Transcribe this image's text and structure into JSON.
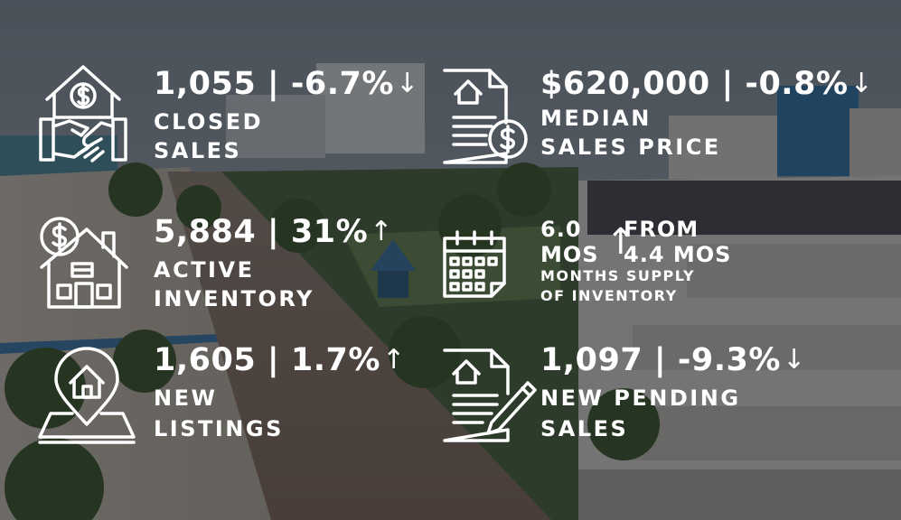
{
  "stats": {
    "closed": {
      "value": "1,055 | -6.7%",
      "arrow": "↓",
      "label_1": "CLOSED",
      "label_2": "SALES",
      "icon": "house-handshake-icon"
    },
    "median": {
      "value": "$620,000 | -0.8%",
      "arrow": "↓",
      "label_1": "MEDIAN",
      "label_2": "SALES PRICE",
      "icon": "document-dollar-icon"
    },
    "active": {
      "value": "5,884 | 31%",
      "arrow": "↑",
      "label_1": "ACTIVE",
      "label_2": "INVENTORY",
      "icon": "house-dollar-icon"
    },
    "supply": {
      "value_top": "6.0",
      "unit": "MOS",
      "arrow": "↑",
      "from_label": "FROM",
      "from_value": "4.4  MOS",
      "label_1": "MONTHS SUPPLY",
      "label_2": "OF INVENTORY",
      "icon": "calendar-icon"
    },
    "new_listings": {
      "value": "1,605 | 1.7%",
      "arrow": "↑",
      "label_1": "NEW",
      "label_2": "LISTINGS",
      "icon": "location-pin-house-icon"
    },
    "pending": {
      "value": "1,097 | -9.3%",
      "arrow": "↓",
      "label_1": "NEW PENDING",
      "label_2": "SALES",
      "icon": "document-pen-icon"
    }
  },
  "colors": {
    "text": "#ffffff",
    "overlay": "rgba(20,22,28,0.55)",
    "sky": "#9fb0bd",
    "sea": "#3d8a9c"
  }
}
